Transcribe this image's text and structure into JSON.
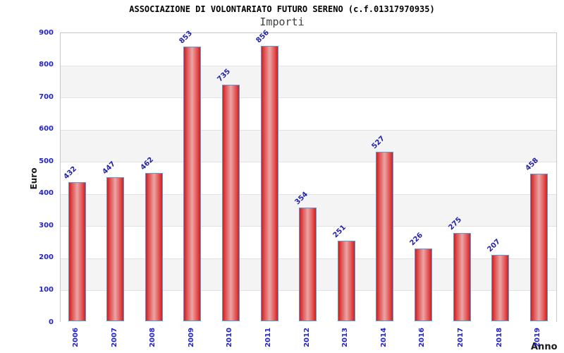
{
  "header": {
    "title": "ASSOCIAZIONE DI VOLONTARIATO FUTURO SERENO (c.f.01317970935)",
    "subtitle": "Importi"
  },
  "chart_data": {
    "type": "bar",
    "title": "ASSOCIAZIONE DI VOLONTARIATO FUTURO SERENO (c.f.01317970935)",
    "subtitle": "Importi",
    "categories": [
      "2006",
      "2007",
      "2008",
      "2009",
      "2010",
      "2011",
      "2012",
      "2013",
      "2014",
      "2016",
      "2017",
      "2018",
      "2019"
    ],
    "values": [
      432,
      447,
      462,
      853,
      735,
      856,
      354,
      251,
      527,
      226,
      275,
      207,
      458
    ],
    "xlabel": "Anno",
    "ylabel": "Euro",
    "ylim": [
      0,
      900
    ],
    "ytick_step": 100,
    "grid": true,
    "legend": false,
    "layout_hints": {
      "bands_alternating": true,
      "bar_labels_rotated_45": true,
      "x_labels_rotated_90": true
    },
    "colors": {
      "bar_edge": "#cf1f1f",
      "bar_highlight": "#eaa5a5",
      "bar_border": "#5b9bd5",
      "axis_text": "#2222cc",
      "value_label": "#2222aa",
      "band_gray": "#f4f4f4",
      "gridline": "#e2e2e2",
      "plot_border": "#c8c8c8",
      "title": "#000000",
      "subtitle": "#3f3f3f",
      "axis_title": "#1a1a1a"
    }
  }
}
